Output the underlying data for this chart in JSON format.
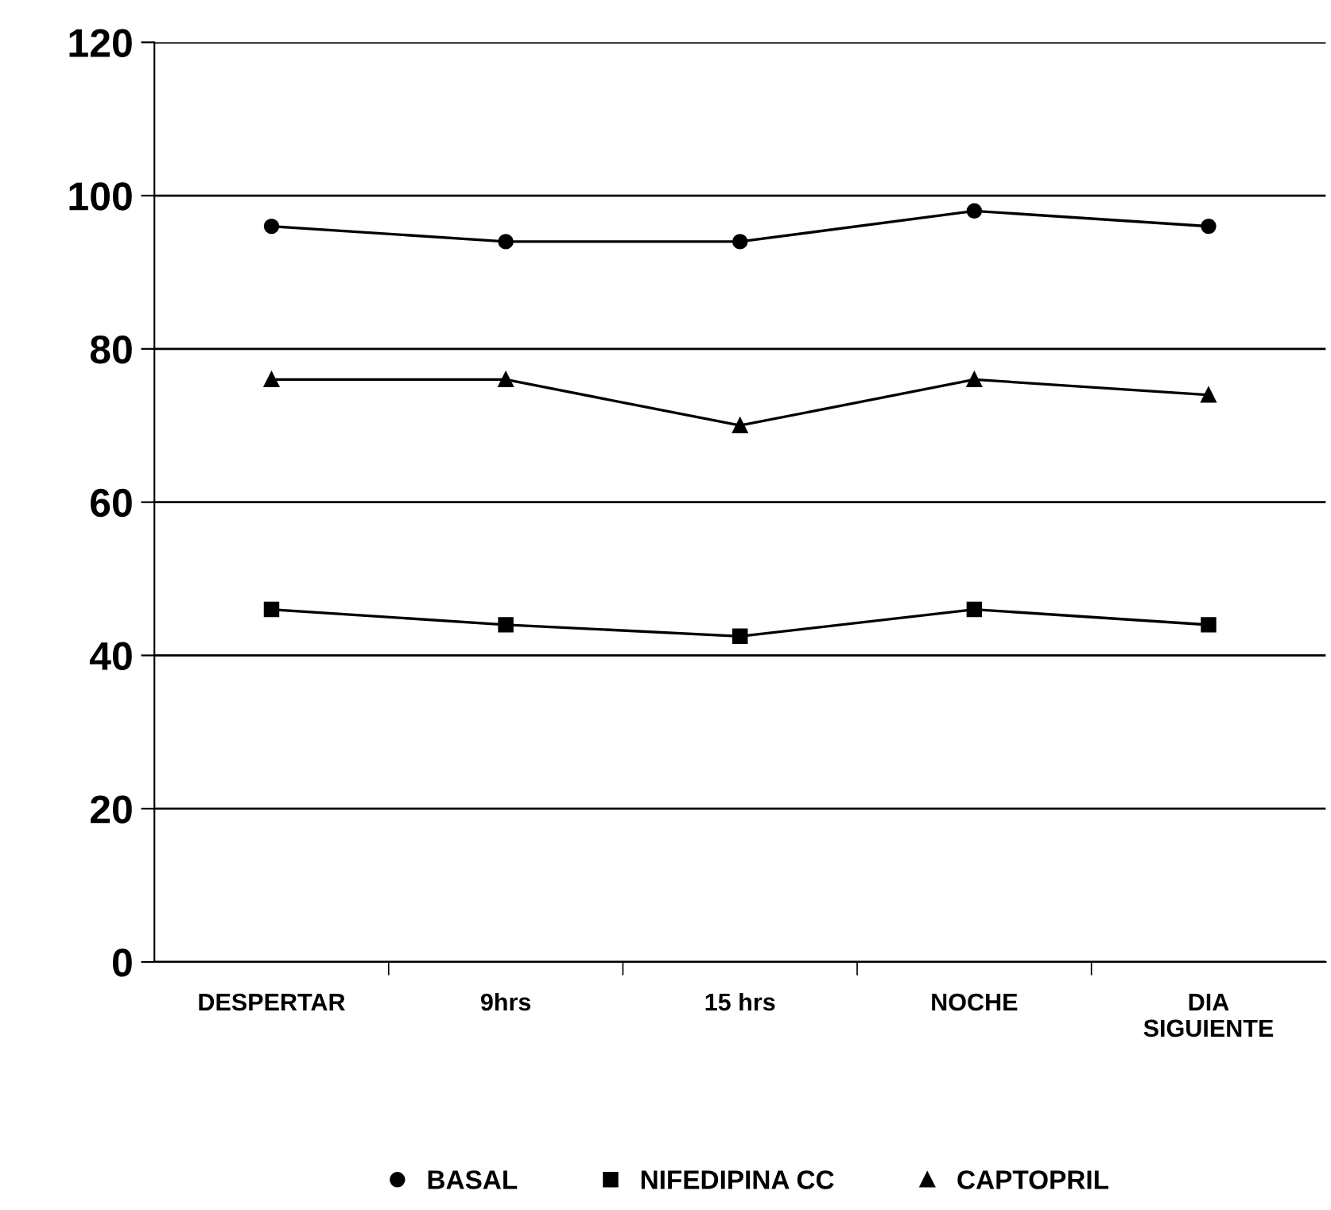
{
  "chart_data": {
    "type": "line",
    "categories": [
      "DESPERTAR",
      "9hrs",
      "15 hrs",
      "NOCHE",
      "DIA\nSIGUIENTE"
    ],
    "series": [
      {
        "name": "BASAL",
        "color": "#000000",
        "marker": "circle",
        "values": [
          96,
          94,
          94,
          98,
          96
        ]
      },
      {
        "name": "NIFEDIPINA CC",
        "color": "#000000",
        "marker": "square",
        "values": [
          46,
          44,
          42.5,
          46,
          44
        ]
      },
      {
        "name": "CAPTOPRIL",
        "color": "#000000",
        "marker": "triangle",
        "values": [
          76,
          76,
          70,
          76,
          74
        ]
      }
    ],
    "ylim": [
      0,
      120
    ],
    "yticks": [
      0,
      20,
      40,
      60,
      80,
      100,
      120
    ],
    "grid": "y",
    "legend": "bottom",
    "line_style": "solid"
  }
}
